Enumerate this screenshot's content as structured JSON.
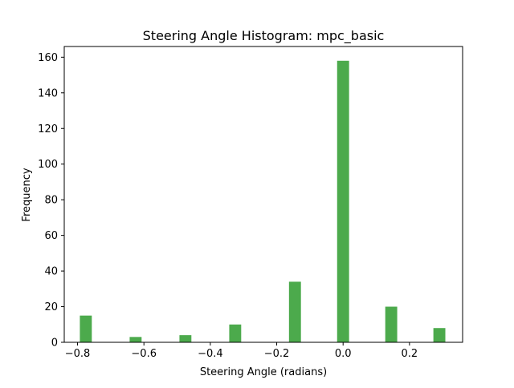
{
  "chart_data": {
    "type": "bar",
    "title": "Steering Angle Histogram: mpc_basic",
    "xlabel": "Steering Angle (radians)",
    "ylabel": "Frequency",
    "xlim": [
      -0.84,
      0.36
    ],
    "ylim": [
      0,
      166
    ],
    "grid": false,
    "bar_color": "#4caa4c",
    "bin_width": 0.036,
    "x_ticks": [
      {
        "value": -0.8,
        "label": "−0.8"
      },
      {
        "value": -0.6,
        "label": "−0.6"
      },
      {
        "value": -0.4,
        "label": "−0.4"
      },
      {
        "value": -0.2,
        "label": "−0.2"
      },
      {
        "value": 0.0,
        "label": "0.0"
      },
      {
        "value": 0.2,
        "label": "0.2"
      }
    ],
    "y_ticks": [
      {
        "value": 0,
        "label": "0"
      },
      {
        "value": 20,
        "label": "20"
      },
      {
        "value": 40,
        "label": "40"
      },
      {
        "value": 60,
        "label": "60"
      },
      {
        "value": 80,
        "label": "80"
      },
      {
        "value": 100,
        "label": "100"
      },
      {
        "value": 120,
        "label": "120"
      },
      {
        "value": 140,
        "label": "140"
      },
      {
        "value": 160,
        "label": "160"
      }
    ],
    "bins": [
      {
        "x": -0.775,
        "value": 15
      },
      {
        "x": -0.625,
        "value": 3
      },
      {
        "x": -0.475,
        "value": 4
      },
      {
        "x": -0.325,
        "value": 10
      },
      {
        "x": -0.145,
        "value": 34
      },
      {
        "x": 0.0,
        "value": 158
      },
      {
        "x": 0.145,
        "value": 20
      },
      {
        "x": 0.29,
        "value": 8
      }
    ]
  }
}
